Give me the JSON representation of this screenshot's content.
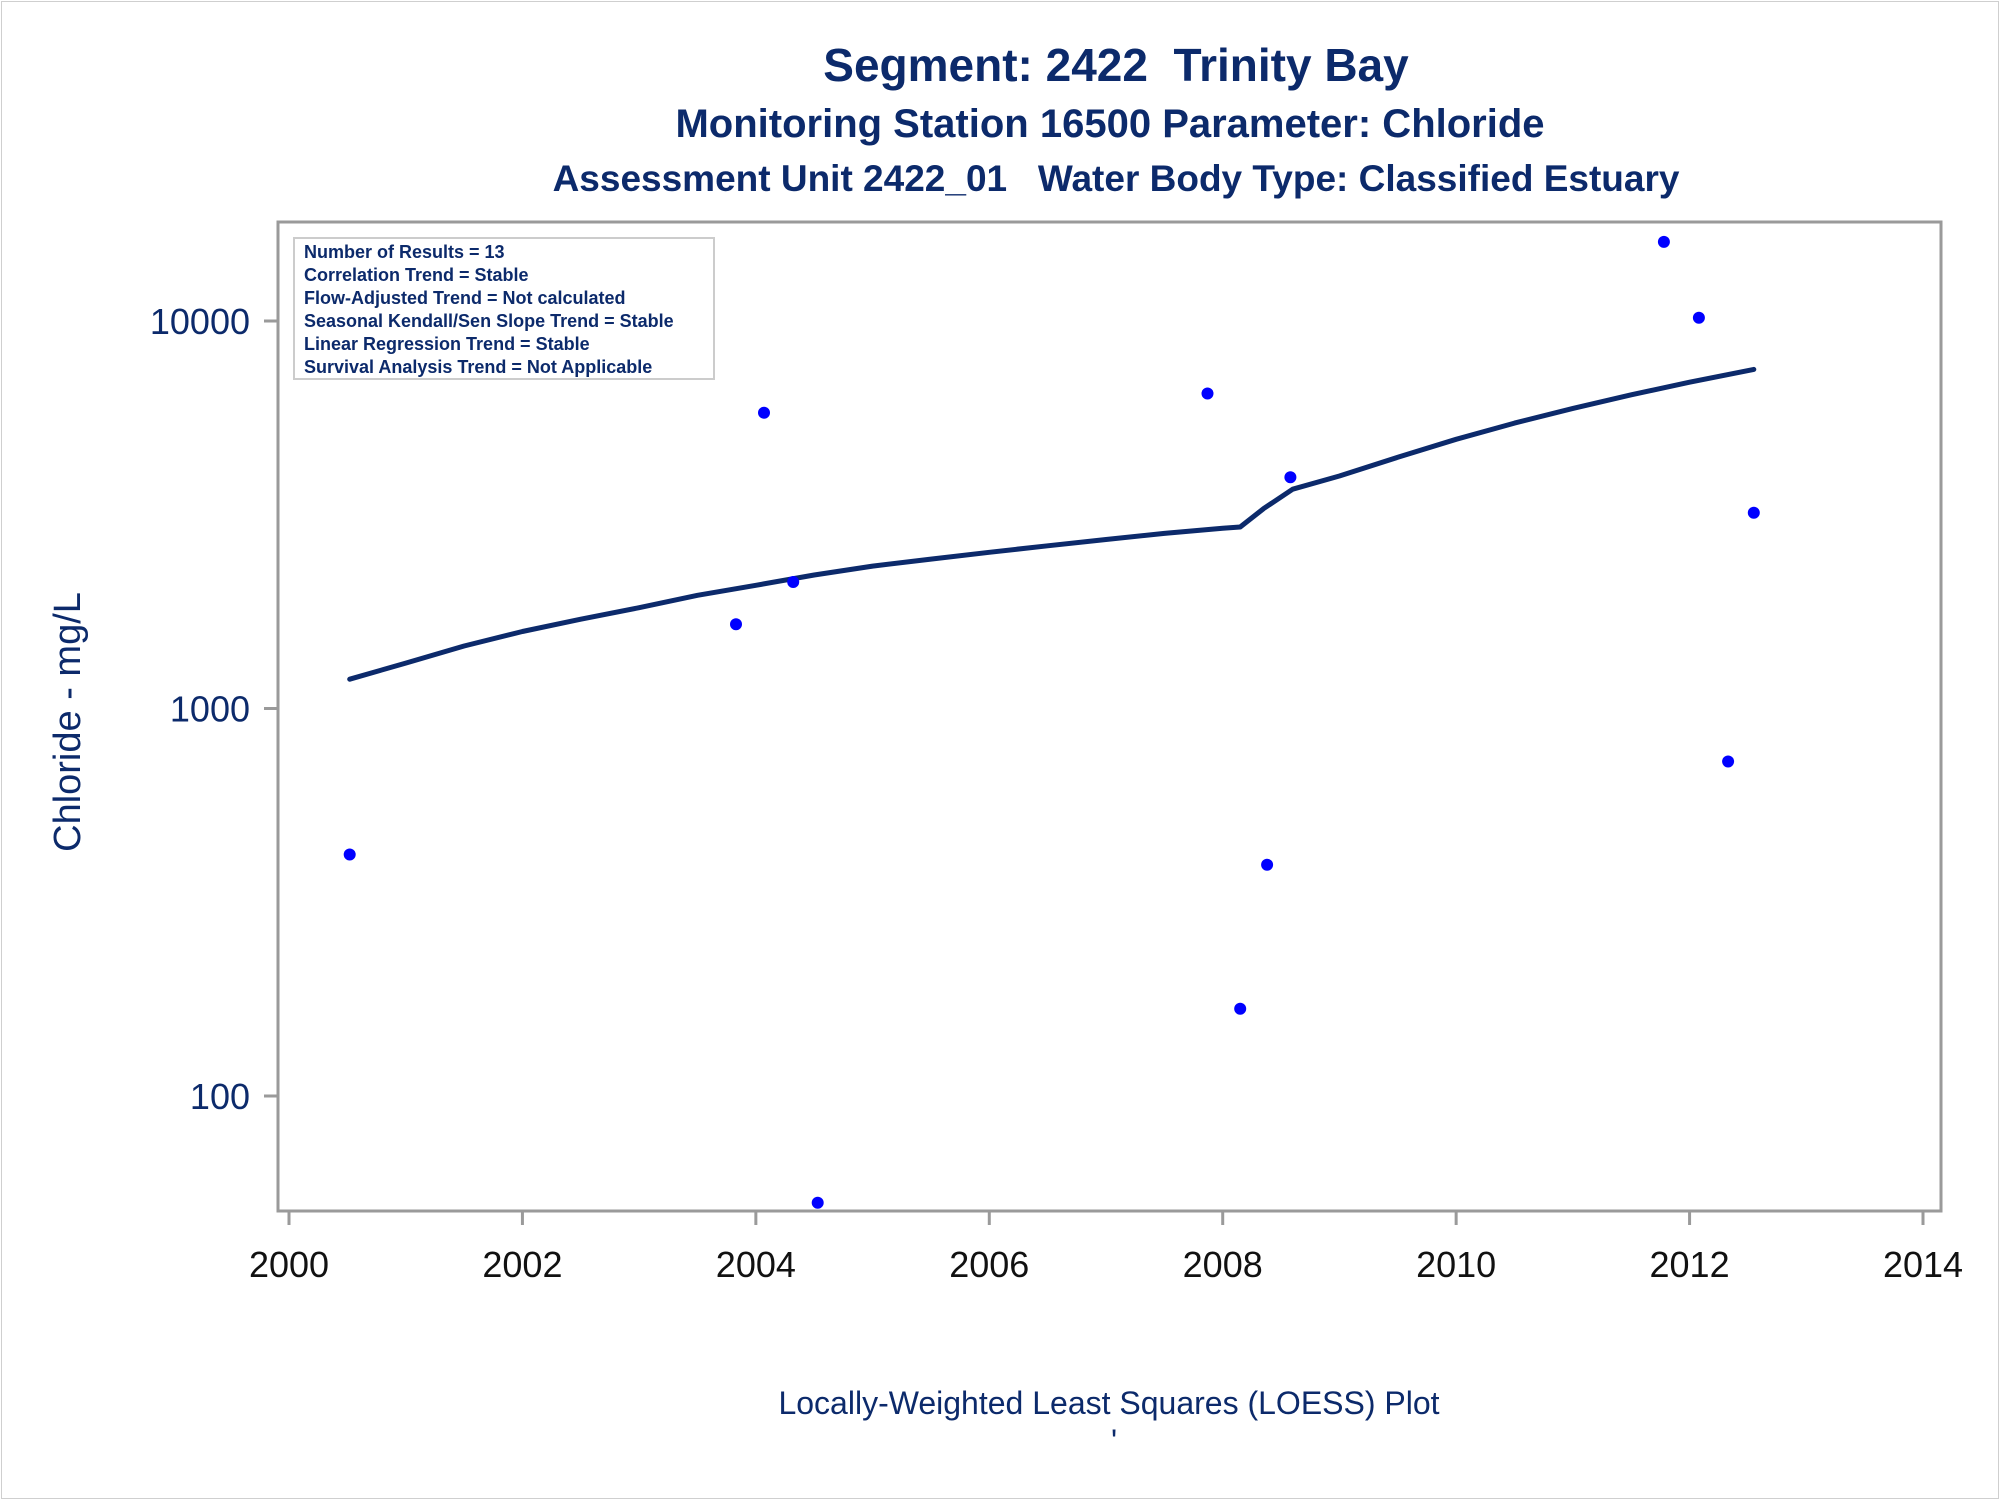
{
  "colors": {
    "text": "#0c2a6b",
    "axis": "#9a9a9a",
    "points": "#0000ff",
    "loess_line": "#0c2a6b",
    "tick_text_x": "#111111"
  },
  "chart_data": {
    "type": "scatter",
    "title": "Segment: 2422  Trinity Bay",
    "subtitle": "Monitoring Station 16500 Parameter: Chloride",
    "subtitle2": "Assessment Unit 2422_01   Water Body Type: Classified Estuary",
    "xlabel": "Locally-Weighted Least Squares (LOESS) Plot",
    "ylabel": "Chloride - mg/L",
    "footnote": "'",
    "x_scale": "linear",
    "y_scale": "log",
    "xlim": [
      2000,
      2014
    ],
    "ylim": [
      50,
      17000
    ],
    "x_ticks": [
      2000,
      2002,
      2004,
      2006,
      2008,
      2010,
      2012,
      2014
    ],
    "y_ticks": [
      100,
      1000,
      10000
    ],
    "x_tick_labels": [
      "2000",
      "2002",
      "2004",
      "2006",
      "2008",
      "2010",
      "2012",
      "2014"
    ],
    "y_tick_labels": [
      "100",
      "1000",
      "10000"
    ],
    "grid": false,
    "legend": "none",
    "stats_box": {
      "placement": "top-left",
      "lines": [
        "Number of Results = 13",
        "Correlation Trend = Stable",
        "Flow-Adjusted Trend = Not calculated",
        "Seasonal Kendall/Sen Slope Trend = Stable",
        "Linear Regression Trend = Stable",
        "Survival Analysis Trend = Not Applicable"
      ]
    },
    "points": [
      {
        "x": 2000.52,
        "y": 420
      },
      {
        "x": 2003.83,
        "y": 1650
      },
      {
        "x": 2004.07,
        "y": 5800
      },
      {
        "x": 2004.32,
        "y": 2120
      },
      {
        "x": 2004.53,
        "y": 53
      },
      {
        "x": 2007.87,
        "y": 6500
      },
      {
        "x": 2008.15,
        "y": 168
      },
      {
        "x": 2008.38,
        "y": 395
      },
      {
        "x": 2008.58,
        "y": 3950
      },
      {
        "x": 2011.78,
        "y": 16000
      },
      {
        "x": 2012.08,
        "y": 10200
      },
      {
        "x": 2012.33,
        "y": 730
      },
      {
        "x": 2012.55,
        "y": 3200
      }
    ],
    "loess_line": [
      {
        "x": 2000.52,
        "y": 1190
      },
      {
        "x": 2001.0,
        "y": 1310
      },
      {
        "x": 2001.5,
        "y": 1450
      },
      {
        "x": 2002.0,
        "y": 1580
      },
      {
        "x": 2002.5,
        "y": 1700
      },
      {
        "x": 2003.0,
        "y": 1820
      },
      {
        "x": 2003.5,
        "y": 1960
      },
      {
        "x": 2004.0,
        "y": 2080
      },
      {
        "x": 2004.5,
        "y": 2210
      },
      {
        "x": 2005.0,
        "y": 2330
      },
      {
        "x": 2005.5,
        "y": 2430
      },
      {
        "x": 2006.0,
        "y": 2530
      },
      {
        "x": 2006.5,
        "y": 2630
      },
      {
        "x": 2007.0,
        "y": 2730
      },
      {
        "x": 2007.5,
        "y": 2830
      },
      {
        "x": 2008.0,
        "y": 2920
      },
      {
        "x": 2008.15,
        "y": 2940
      },
      {
        "x": 2008.35,
        "y": 3280
      },
      {
        "x": 2008.6,
        "y": 3680
      },
      {
        "x": 2009.0,
        "y": 3980
      },
      {
        "x": 2009.5,
        "y": 4450
      },
      {
        "x": 2010.0,
        "y": 4950
      },
      {
        "x": 2010.5,
        "y": 5450
      },
      {
        "x": 2011.0,
        "y": 5950
      },
      {
        "x": 2011.5,
        "y": 6450
      },
      {
        "x": 2012.0,
        "y": 6950
      },
      {
        "x": 2012.55,
        "y": 7500
      }
    ]
  }
}
